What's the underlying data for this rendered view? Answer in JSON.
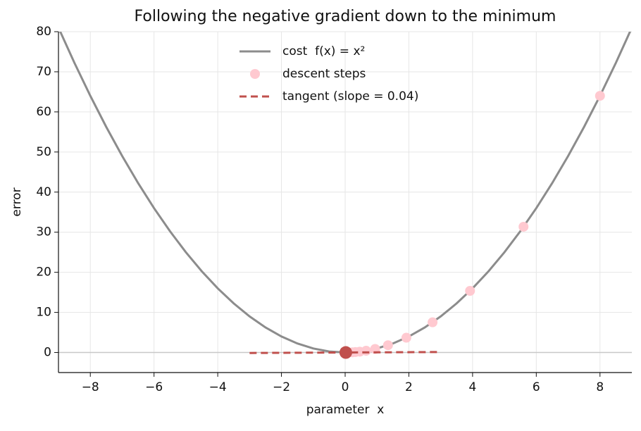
{
  "chart_data": {
    "type": "line",
    "title": "Following the negative gradient down to the minimum",
    "x_label": "parameter  x",
    "y_label": "error",
    "xlim": [
      -9,
      9
    ],
    "ylim": [
      -5,
      80
    ],
    "xticks": [
      {
        "value": -8,
        "label": "−8"
      },
      {
        "value": -6,
        "label": "−6"
      },
      {
        "value": -4,
        "label": "−4"
      },
      {
        "value": -2,
        "label": "−2"
      },
      0,
      2,
      4,
      6,
      8
    ],
    "yticks": [
      0,
      10,
      20,
      30,
      40,
      50,
      60,
      70,
      80
    ],
    "grid": true,
    "legend": "upper center",
    "reference_line": 0,
    "series": [
      {
        "name": "cost  f(x) = x²",
        "kind": "line",
        "color": "#8c8c8c",
        "x": [
          -9,
          -8.5,
          -8,
          -7.5,
          -7,
          -6.5,
          -6,
          -5.5,
          -5,
          -4.5,
          -4,
          -3.5,
          -3,
          -2.5,
          -2,
          -1.5,
          -1,
          -0.5,
          0,
          0.5,
          1,
          1.5,
          2,
          2.5,
          3,
          3.5,
          4,
          4.5,
          5,
          5.5,
          6,
          6.5,
          7,
          7.5,
          8,
          8.5,
          9
        ],
        "values": [
          81,
          72.25,
          64,
          56.25,
          49,
          42.25,
          36,
          30.25,
          25,
          20.25,
          16,
          12.25,
          9,
          6.25,
          4,
          2.25,
          1,
          0.25,
          0,
          0.25,
          1,
          2.25,
          4,
          6.25,
          9,
          12.25,
          16,
          20.25,
          25,
          30.25,
          36,
          42.25,
          49,
          56.25,
          64,
          72.25,
          81
        ]
      },
      {
        "name": "descent steps",
        "kind": "scatter",
        "color": "#ffc9d0",
        "x": [
          8,
          5.6,
          3.92,
          2.744,
          1.921,
          1.345,
          0.941,
          0.659,
          0.461,
          0.323,
          0.226
        ],
        "values": [
          64,
          31.36,
          15.37,
          7.53,
          3.69,
          1.81,
          0.885,
          0.434,
          0.213,
          0.104,
          0.051
        ]
      },
      {
        "name": "tangent (slope = 0.04)",
        "kind": "dashed",
        "color": "#c0504d",
        "x": [
          -3,
          3
        ],
        "values": [
          -0.12,
          0.12
        ]
      }
    ],
    "current_point": {
      "x": 0.02,
      "y": 0.0004,
      "color": "#c0504d"
    }
  }
}
